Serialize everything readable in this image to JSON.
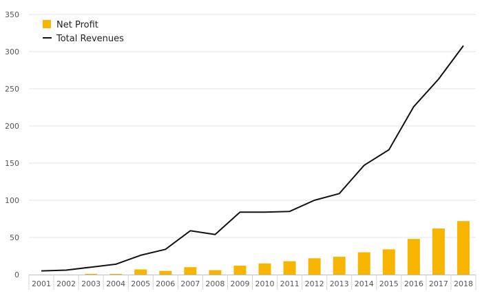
{
  "chart_data": {
    "type": "bar+line",
    "categories": [
      "2001",
      "2002",
      "2003",
      "2004",
      "2005",
      "2006",
      "2007",
      "2008",
      "2009",
      "2010",
      "2011",
      "2012",
      "2013",
      "2014",
      "2015",
      "2016",
      "2017",
      "2018"
    ],
    "series": [
      {
        "name": "Net Profit",
        "kind": "bar",
        "color": "#f7b500",
        "values": [
          0,
          0,
          1,
          1,
          7,
          5,
          10,
          6,
          12,
          15,
          18,
          22,
          24,
          30,
          34,
          48,
          62,
          72
        ]
      },
      {
        "name": "Total Revenues",
        "kind": "line",
        "color": "#111111",
        "values": [
          5,
          6,
          10,
          14,
          26,
          34,
          59,
          54,
          84,
          84,
          85,
          100,
          109,
          147,
          168,
          226,
          263,
          308
        ]
      }
    ],
    "yticks": [
      "0",
      "50",
      "100",
      "150",
      "200",
      "250",
      "300",
      "350"
    ],
    "ylim": [
      0,
      350
    ],
    "grid": true,
    "legend_position": "top-left"
  },
  "legend": {
    "items": [
      {
        "label": "Net Profit",
        "color": "#f7b500"
      },
      {
        "label": "Total Revenues",
        "color": "#111111"
      }
    ]
  }
}
